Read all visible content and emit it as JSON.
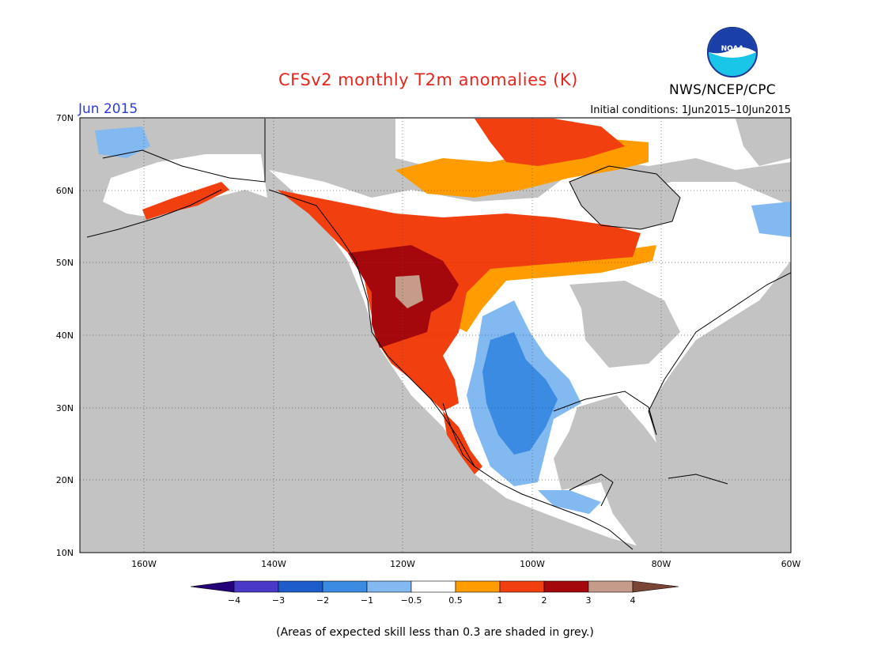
{
  "header": {
    "title": "CFSv2 monthly T2m anomalies (K)",
    "agency": "NWS/NCEP/CPC",
    "logo_text": "NOAA",
    "month": "Jun 2015",
    "initial_conditions": "Initial conditions: 1Jun2015–10Jun2015"
  },
  "map": {
    "lon_range": [
      -170,
      -60
    ],
    "lat_range": [
      10,
      70
    ],
    "lat_ticks": [
      {
        "value": 70,
        "label": "70N"
      },
      {
        "value": 60,
        "label": "60N"
      },
      {
        "value": 50,
        "label": "50N"
      },
      {
        "value": 40,
        "label": "40N"
      },
      {
        "value": 30,
        "label": "30N"
      },
      {
        "value": 20,
        "label": "20N"
      },
      {
        "value": 10,
        "label": "10N"
      }
    ],
    "lon_ticks": [
      {
        "value": -160,
        "label": "160W"
      },
      {
        "value": -140,
        "label": "140W"
      },
      {
        "value": -120,
        "label": "120W"
      },
      {
        "value": -100,
        "label": "100W"
      },
      {
        "value": -80,
        "label": "80W"
      },
      {
        "value": -60,
        "label": "60W"
      }
    ],
    "grid": true,
    "low_skill_color": "#c3c3c3",
    "land_color": "#ffffff"
  },
  "colorbar": {
    "bins": [
      {
        "color": "#23007a"
      },
      {
        "color": "#4a38c8"
      },
      {
        "color": "#1c5dcb"
      },
      {
        "color": "#3b8be2"
      },
      {
        "color": "#82b9f0"
      },
      {
        "color": "#ffffff"
      },
      {
        "color": "#ff9d00"
      },
      {
        "color": "#f23f10"
      },
      {
        "color": "#a4080c"
      },
      {
        "color": "#c59c8a"
      },
      {
        "color": "#7a4436"
      }
    ],
    "labels": [
      "−4",
      "−3",
      "−2",
      "−1",
      "−0.5",
      "0.5",
      "1",
      "2",
      "3",
      "4"
    ]
  },
  "footnote": "(Areas of expected skill less than 0.3 are shaded in grey.)"
}
